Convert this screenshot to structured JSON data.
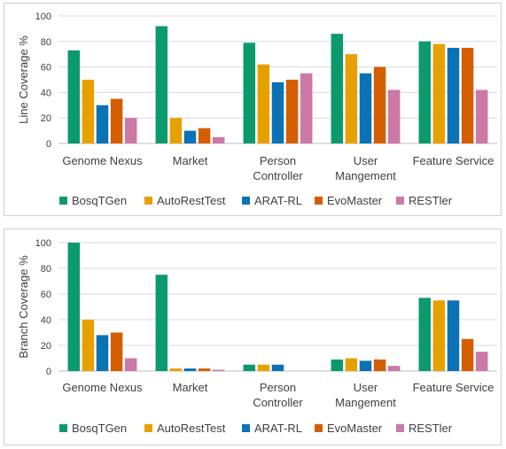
{
  "chart_data": [
    {
      "type": "bar",
      "ylabel": "Line Coverage %",
      "ylim": [
        0,
        100
      ],
      "yticks": [
        0,
        20,
        40,
        60,
        80,
        100
      ],
      "grid": true,
      "legend_position": "bottom",
      "categories": [
        [
          "Genome Nexus"
        ],
        [
          "Market"
        ],
        [
          "Person",
          "Controller"
        ],
        [
          "User",
          "Mangement"
        ],
        [
          "Feature Service"
        ]
      ],
      "series": [
        {
          "name": "BosqTGen",
          "color": "#0b9a6e",
          "values": [
            73,
            92,
            79,
            86,
            80
          ]
        },
        {
          "name": "AutoRestTest",
          "color": "#e6a100",
          "values": [
            50,
            20,
            62,
            70,
            78
          ]
        },
        {
          "name": "ARAT-RL",
          "color": "#0a72b5",
          "values": [
            30,
            10,
            48,
            55,
            75
          ]
        },
        {
          "name": "EvoMaster",
          "color": "#d55e00",
          "values": [
            35,
            12,
            50,
            60,
            75
          ]
        },
        {
          "name": "RESTler",
          "color": "#cc79a7",
          "values": [
            20,
            5,
            55,
            42,
            42
          ]
        }
      ]
    },
    {
      "type": "bar",
      "ylabel": "Branch Coverage %",
      "ylim": [
        0,
        100
      ],
      "yticks": [
        0,
        20,
        40,
        60,
        80,
        100
      ],
      "grid": true,
      "legend_position": "bottom",
      "categories": [
        [
          "Genome Nexus"
        ],
        [
          "Market"
        ],
        [
          "Person",
          "Controller"
        ],
        [
          "User",
          "Mangement"
        ],
        [
          "Feature Service"
        ]
      ],
      "series": [
        {
          "name": "BosqTGen",
          "color": "#0b9a6e",
          "values": [
            100,
            75,
            5,
            9,
            57
          ]
        },
        {
          "name": "AutoRestTest",
          "color": "#e6a100",
          "values": [
            40,
            2,
            5,
            10,
            55
          ]
        },
        {
          "name": "ARAT-RL",
          "color": "#0a72b5",
          "values": [
            28,
            2,
            5,
            8,
            55
          ]
        },
        {
          "name": "EvoMaster",
          "color": "#d55e00",
          "values": [
            30,
            2,
            0,
            9,
            25
          ]
        },
        {
          "name": "RESTler",
          "color": "#cc79a7",
          "values": [
            10,
            1,
            0,
            4,
            15
          ]
        }
      ]
    }
  ]
}
